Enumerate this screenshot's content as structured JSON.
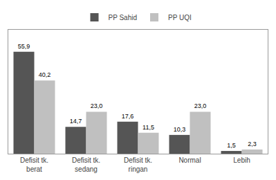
{
  "chart_data": {
    "type": "bar",
    "categories": [
      "Defisit tk.\nberat",
      "Defisit tk.\nsedang",
      "Defisit tk.\nringan",
      "Normal",
      "Lebih"
    ],
    "series": [
      {
        "name": "PP Sahid",
        "color": "#555555",
        "values": [
          55.9,
          14.7,
          17.6,
          10.3,
          1.5
        ],
        "value_labels": [
          "55,9",
          "14,7",
          "17,6",
          "10,3",
          "1,5"
        ]
      },
      {
        "name": "PP UQI",
        "color": "#c0c0c0",
        "values": [
          40.2,
          23.0,
          11.5,
          23.0,
          2.3
        ],
        "value_labels": [
          "40,2",
          "23,0",
          "11,5",
          "23,0",
          "2,3"
        ]
      }
    ],
    "ylim": [
      0,
      68
    ],
    "data_labels": true,
    "tick_labels": "x",
    "grid": false,
    "legend": "top"
  }
}
